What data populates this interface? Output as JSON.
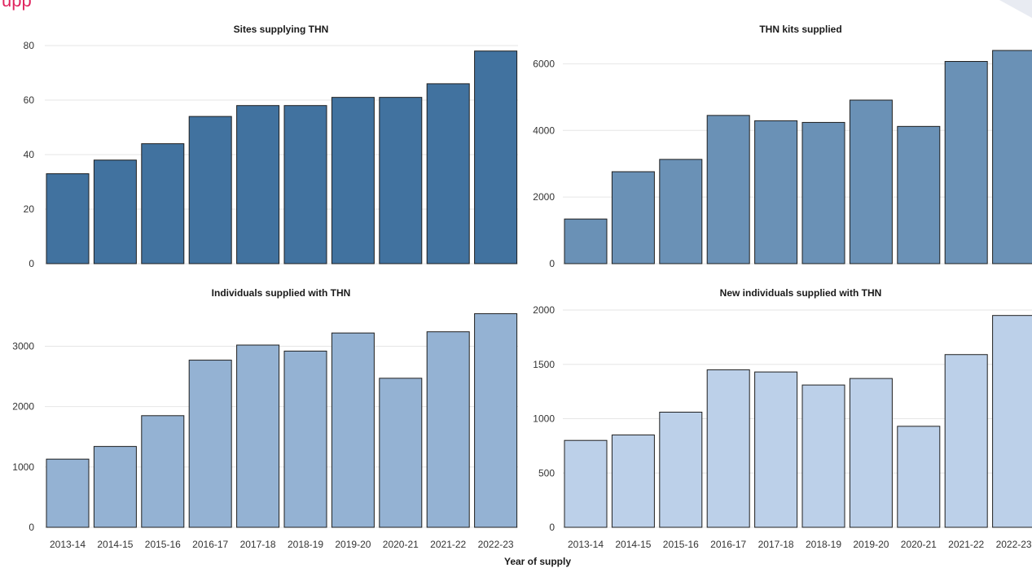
{
  "header": {
    "left_fragment": "upp",
    "right_fragment": ""
  },
  "colors": {
    "sites": "#41729f",
    "kits": "#6a91b6",
    "individuals": "#94b2d3",
    "new_individuals": "#bcd0e9",
    "bar_outline": "#1f1f1f",
    "grid": "#e6e6e6",
    "header_text": "#e0245e"
  },
  "chart_data": [
    {
      "type": "bar",
      "title": "Sites supplying THN",
      "categories": [
        "2013-14",
        "2014-15",
        "2015-16",
        "2016-17",
        "2017-18",
        "2018-19",
        "2019-20",
        "2020-21",
        "2021-22",
        "2022-23"
      ],
      "values": [
        33,
        38,
        44,
        54,
        58,
        58,
        61,
        61,
        66,
        78
      ],
      "ylim": [
        0,
        80
      ],
      "yticks": [
        0,
        20,
        40,
        60,
        80
      ],
      "grid": true,
      "show_x_labels": false
    },
    {
      "type": "bar",
      "title": "THN kits supplied",
      "categories": [
        "2013-14",
        "2014-15",
        "2015-16",
        "2016-17",
        "2017-18",
        "2018-19",
        "2019-20",
        "2020-21",
        "2021-22",
        "2022-23"
      ],
      "values": [
        1340,
        2760,
        3130,
        4450,
        4290,
        4240,
        4910,
        4120,
        6070,
        6400
      ],
      "ylim": [
        0,
        6400
      ],
      "yticks": [
        0,
        2000,
        4000,
        6000
      ],
      "grid": true,
      "show_x_labels": false
    },
    {
      "type": "bar",
      "title": "Individuals supplied with THN",
      "categories": [
        "2013-14",
        "2014-15",
        "2015-16",
        "2016-17",
        "2017-18",
        "2018-19",
        "2019-20",
        "2020-21",
        "2021-22",
        "2022-23"
      ],
      "values": [
        1130,
        1340,
        1850,
        2770,
        3020,
        2920,
        3220,
        2470,
        3240,
        3540
      ],
      "ylim": [
        0,
        3600
      ],
      "yticks": [
        0,
        1000,
        2000,
        3000
      ],
      "grid": true,
      "show_x_labels": true
    },
    {
      "type": "bar",
      "title": "New individuals supplied with THN",
      "categories": [
        "2013-14",
        "2014-15",
        "2015-16",
        "2016-17",
        "2017-18",
        "2018-19",
        "2019-20",
        "2020-21",
        "2021-22",
        "2022-23"
      ],
      "values": [
        800,
        850,
        1060,
        1450,
        1430,
        1310,
        1370,
        930,
        1590,
        1950
      ],
      "ylim": [
        0,
        2000
      ],
      "yticks": [
        0,
        500,
        1000,
        1500,
        2000
      ],
      "grid": true,
      "show_x_labels": true
    }
  ],
  "shared_xlabel": "Year of supply"
}
